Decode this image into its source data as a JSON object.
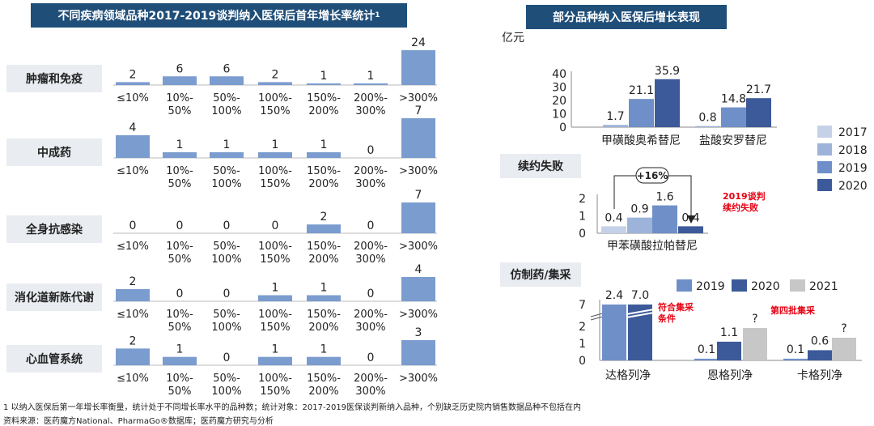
{
  "left_panel": {
    "title": "不同疾病领域品种2017-2019谈判纳入医保后首年增长率统计",
    "title_sup": "1"
  },
  "right_panel": {
    "title": "部分品种纳入医保后增长表现",
    "unit": "亿元",
    "section_xuyue": "续约失败",
    "section_fangzhi": "仿制药/集采",
    "legend_years": [
      "2017",
      "2018",
      "2019",
      "2020"
    ],
    "legend2_years": [
      "2019",
      "2020",
      "2021"
    ],
    "badge": "+16%",
    "annotation_fail_line1": "2019谈判",
    "annotation_fail_line2": "续约失败",
    "annotation_meet_line1": "符合集采",
    "annotation_meet_line2": "条件",
    "annotation_batch": "第四批集采"
  },
  "footnotes": {
    "line1": "1 以纳入医保后第一年增长率衡量，统计处于不同增长率水平的品种数；统计对象：2017-2019医保谈判新纳入品种，个别缺乏历史院内销售数据品种不包括在内",
    "line2": "资料来源：医药魔方National、PharmaGo®数据库；医药魔方研究与分析"
  },
  "colors": {
    "header_bg": "#1f4e79",
    "bar_left": "#7b9ccf",
    "c2017": "#c5d1e6",
    "c2018": "#9db3da",
    "c2019": "#6f8fc8",
    "c2020": "#3c5a99",
    "c2021": "#c7c7c7",
    "red": "#e60012"
  },
  "chart_data": [
    {
      "type": "bar",
      "title": "不同疾病领域品种2017-2019谈判纳入医保后首年增长率统计",
      "categories": [
        [
          "≤10%"
        ],
        [
          "10%-",
          "50%"
        ],
        [
          "50%-",
          "100%"
        ],
        [
          "100%-",
          "150%"
        ],
        [
          "150%-",
          "200%"
        ],
        [
          "200%-",
          "300%"
        ],
        [
          ">300%"
        ]
      ],
      "series": [
        {
          "name": "肿瘤和免疫",
          "values": [
            2,
            6,
            6,
            2,
            1,
            1,
            24
          ]
        },
        {
          "name": "中成药",
          "values": [
            4,
            1,
            1,
            1,
            1,
            0,
            7
          ]
        },
        {
          "name": "全身抗感染",
          "values": [
            0,
            0,
            0,
            0,
            2,
            0,
            7
          ]
        },
        {
          "name": "消化道新陈代谢",
          "values": [
            2,
            0,
            0,
            1,
            1,
            0,
            4
          ]
        },
        {
          "name": "心血管系统",
          "values": [
            2,
            1,
            0,
            1,
            1,
            0,
            3
          ]
        }
      ]
    },
    {
      "type": "bar",
      "categories": [
        "甲磺酸奥希替尼",
        "盐酸安罗替尼"
      ],
      "series": [
        {
          "name": "2018",
          "values": [
            1.7,
            0.8
          ]
        },
        {
          "name": "2019",
          "values": [
            21.1,
            14.8
          ]
        },
        {
          "name": "2020",
          "values": [
            35.9,
            21.7
          ]
        }
      ],
      "yticks": [
        0,
        10,
        20,
        30,
        40
      ],
      "ylim": [
        0,
        40
      ]
    },
    {
      "type": "bar",
      "categories": [
        "甲苯磺酸拉帕替尼"
      ],
      "series": [
        {
          "name": "2017",
          "values": [
            0.4
          ]
        },
        {
          "name": "2018",
          "values": [
            0.9
          ]
        },
        {
          "name": "2019",
          "values": [
            1.6
          ]
        },
        {
          "name": "2020",
          "values": [
            0.4
          ]
        }
      ],
      "yticks": [
        0,
        1,
        2
      ],
      "ylim": [
        0,
        2
      ]
    },
    {
      "type": "bar",
      "categories": [
        "达格列净",
        "恩格列净",
        "卡格列净"
      ],
      "series": [
        {
          "name": "2019",
          "values": [
            2.4,
            0.1,
            0.1
          ]
        },
        {
          "name": "2020",
          "values": [
            7.0,
            1.1,
            0.6
          ]
        },
        {
          "name": "2021",
          "values": [
            null,
            null,
            null
          ]
        }
      ],
      "value_labels": [
        [
          "2.4",
          "7.0",
          null
        ],
        [
          "0.1",
          "1.1",
          "?"
        ],
        [
          "0.1",
          "0.6",
          "?"
        ]
      ],
      "yticks": [
        0,
        1,
        2,
        7
      ],
      "y_axis_break": true
    }
  ]
}
